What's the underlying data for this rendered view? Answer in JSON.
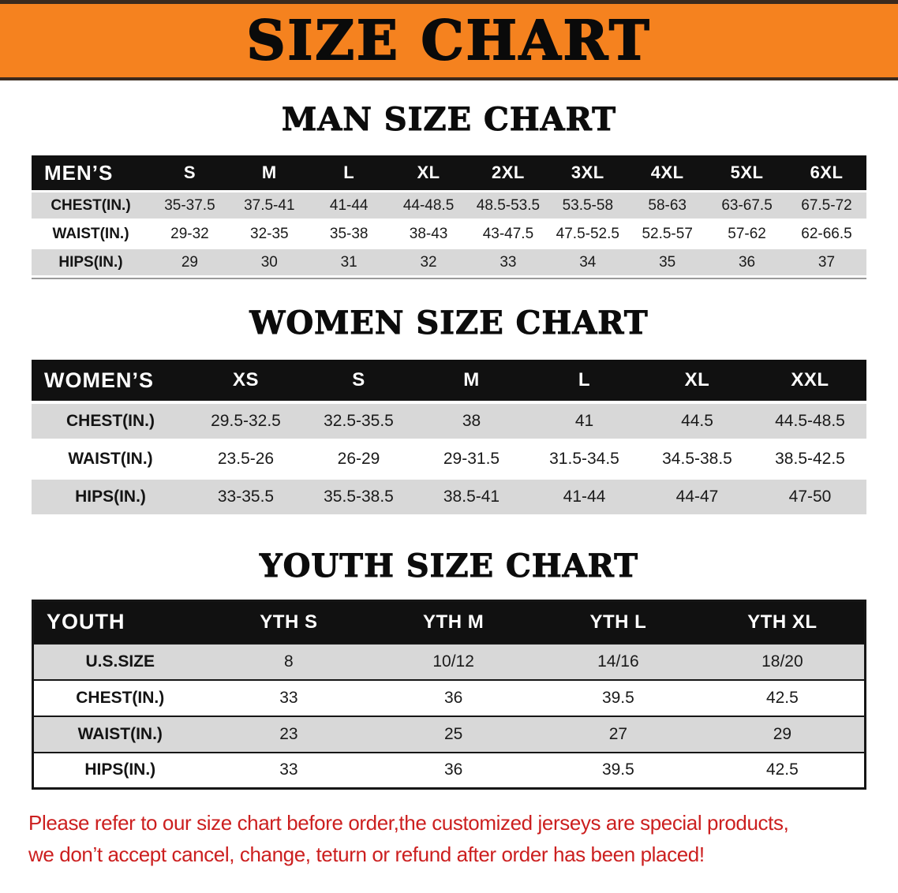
{
  "banner": {
    "title": "SIZE CHART"
  },
  "sections": [
    {
      "id": "men",
      "heading": "MAN SIZE CHART",
      "table": {
        "header": [
          "MEN’S",
          "S",
          "M",
          "L",
          "XL",
          "2XL",
          "3XL",
          "4XL",
          "5XL",
          "6XL"
        ],
        "rows": [
          [
            "CHEST(IN.)",
            "35-37.5",
            "37.5-41",
            "41-44",
            "44-48.5",
            "48.5-53.5",
            "53.5-58",
            "58-63",
            "63-67.5",
            "67.5-72"
          ],
          [
            "WAIST(IN.)",
            "29-32",
            "32-35",
            "35-38",
            "38-43",
            "43-47.5",
            "47.5-52.5",
            "52.5-57",
            "57-62",
            "62-66.5"
          ],
          [
            "HIPS(IN.)",
            "29",
            "30",
            "31",
            "32",
            "33",
            "34",
            "35",
            "36",
            "37"
          ]
        ]
      }
    },
    {
      "id": "women",
      "heading": "WOMEN SIZE CHART",
      "table": {
        "header": [
          "WOMEN’S",
          "XS",
          "S",
          "M",
          "L",
          "XL",
          "XXL"
        ],
        "rows": [
          [
            "CHEST(IN.)",
            "29.5-32.5",
            "32.5-35.5",
            "38",
            "41",
            "44.5",
            "44.5-48.5"
          ],
          [
            "WAIST(IN.)",
            "23.5-26",
            "26-29",
            "29-31.5",
            "31.5-34.5",
            "34.5-38.5",
            "38.5-42.5"
          ],
          [
            "HIPS(IN.)",
            "33-35.5",
            "35.5-38.5",
            "38.5-41",
            "41-44",
            "44-47",
            "47-50"
          ]
        ]
      }
    },
    {
      "id": "youth",
      "heading": "YOUTH SIZE CHART",
      "table": {
        "header": [
          "YOUTH",
          "YTH S",
          "YTH M",
          "YTH L",
          "YTH XL"
        ],
        "rows": [
          [
            "U.S.SIZE",
            "8",
            "10/12",
            "14/16",
            "18/20"
          ],
          [
            "CHEST(IN.)",
            "33",
            "36",
            "39.5",
            "42.5"
          ],
          [
            "WAIST(IN.)",
            "23",
            "25",
            "27",
            "29"
          ],
          [
            "HIPS(IN.)",
            "33",
            "36",
            "39.5",
            "42.5"
          ]
        ]
      }
    }
  ],
  "footer": {
    "line1": "Please refer to our size chart before order,the customized jerseys are special products,",
    "line2": "we don’t accept cancel, change, teturn or refund after order has been placed!"
  },
  "colors": {
    "banner_bg": "#F5821F",
    "banner_border": "#3A2A1E",
    "header_bg": "#111111",
    "row_alt_bg": "#D8D8D8",
    "footer_text": "#CC1F1F"
  }
}
